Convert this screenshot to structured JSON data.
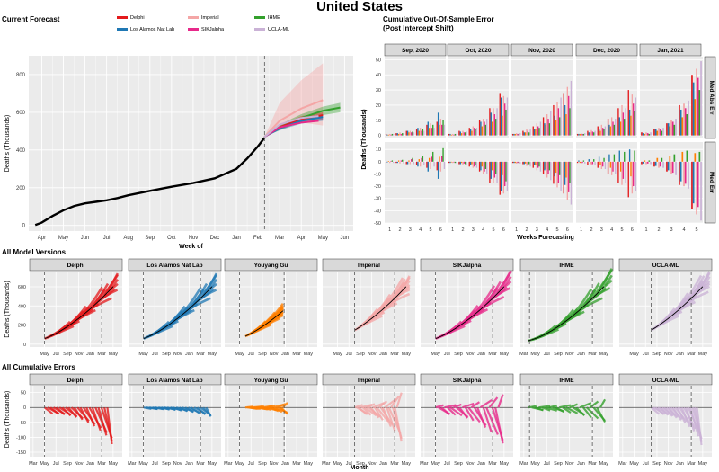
{
  "title": "United States",
  "colors": {
    "panel_bg": "#ebebeb",
    "grid": "#ffffff",
    "strip_bg": "#d9d9d9",
    "black": "#000000"
  },
  "models": [
    {
      "name": "Delphi",
      "color": "#e41a1c"
    },
    {
      "name": "Los Alamos Nat Lab",
      "color": "#1f78b4"
    },
    {
      "name": "Youyang Gu",
      "color": "#ff7f00"
    },
    {
      "name": "Imperial",
      "color": "#f4a6a6"
    },
    {
      "name": "SIKJalpha",
      "color": "#e7298a"
    },
    {
      "name": "IHME",
      "color": "#33a02c"
    },
    {
      "name": "UCLA-ML",
      "color": "#cab2d6"
    }
  ],
  "chart_data": [
    {
      "id": "current_forecast",
      "type": "line",
      "title": "Current Forecast",
      "xlabel": "Week of",
      "ylabel": "Deaths (Thousands)",
      "x_ticks": [
        "Apr",
        "May",
        "Jun",
        "Jul",
        "Aug",
        "Sep",
        "Oct",
        "Nov",
        "Dec",
        "Jan",
        "Feb",
        "Mar",
        "Apr",
        "May",
        "Jun"
      ],
      "ylim": [
        -30,
        900
      ],
      "y_ticks": [
        0,
        200,
        400,
        600,
        800
      ],
      "legend_names": [
        "Delphi",
        "Imperial",
        "IHME",
        "Los Alamos Nat Lab",
        "SIKJalpha",
        "UCLA-ML"
      ],
      "vline_x": 10.3,
      "observed": {
        "x": [
          -0.3,
          0,
          0.5,
          1,
          1.5,
          2,
          2.5,
          3,
          3.5,
          4,
          5,
          6,
          7,
          8,
          9,
          9.5,
          10,
          10.3
        ],
        "y": [
          2,
          15,
          50,
          80,
          103,
          117,
          125,
          133,
          145,
          160,
          183,
          205,
          225,
          250,
          300,
          355,
          420,
          465
        ]
      },
      "forecasts": [
        {
          "name": "Imperial",
          "x": [
            10.3,
            11,
            12,
            13
          ],
          "y": [
            470,
            555,
            620,
            665
          ],
          "lower": [
            470,
            520,
            545,
            530
          ],
          "upper": [
            470,
            650,
            770,
            860
          ]
        },
        {
          "name": "IHME",
          "x": [
            10.3,
            11,
            12,
            13,
            13.8
          ],
          "y": [
            470,
            520,
            570,
            608,
            625
          ],
          "lower": [
            470,
            505,
            548,
            585,
            600
          ],
          "upper": [
            470,
            535,
            590,
            630,
            650
          ]
        },
        {
          "name": "Delphi",
          "x": [
            10.3,
            11,
            12,
            13
          ],
          "y": [
            470,
            520,
            565,
            585
          ],
          "lower": [
            470,
            510,
            545,
            560
          ],
          "upper": [
            470,
            530,
            580,
            600
          ]
        },
        {
          "name": "Los Alamos Nat Lab",
          "x": [
            10.3,
            11,
            12,
            13
          ],
          "y": [
            470,
            515,
            555,
            575
          ],
          "lower": [
            470,
            505,
            540,
            555
          ],
          "upper": [
            470,
            525,
            570,
            590
          ]
        },
        {
          "name": "SIKJalpha",
          "x": [
            10.3,
            11,
            12,
            12.8
          ],
          "y": [
            470,
            520,
            545,
            555
          ]
        },
        {
          "name": "UCLA-ML",
          "x": [
            10.3,
            11,
            12,
            12.8
          ],
          "y": [
            470,
            535,
            570,
            580
          ]
        }
      ]
    },
    {
      "id": "cumulative_error",
      "type": "bar",
      "title": "Cumulative Out-Of-Sample Error",
      "subtitle": "(Post Intercept Shift)",
      "xlabel": "Weeks Forecasting",
      "ylabel": "Deaths (Thousands)",
      "columns": [
        "Sep, 2020",
        "Oct, 2020",
        "Nov, 2020",
        "Dec, 2020",
        "Jan, 2021"
      ],
      "rows": [
        "Med Abs Err",
        "Med Err"
      ],
      "row_ylims": [
        [
          -2,
          52
        ],
        [
          -50,
          16
        ]
      ],
      "row_yticks": [
        [
          0,
          10,
          20,
          30,
          40,
          50
        ],
        [
          -50,
          -40,
          -30,
          -20,
          -10,
          0,
          10
        ]
      ],
      "weeks": [
        1,
        2,
        3,
        4,
        5,
        6
      ],
      "series_order": [
        "Delphi",
        "Los Alamos Nat Lab",
        "Youyang Gu",
        "Imperial",
        "SIKJalpha",
        "IHME",
        "UCLA-ML"
      ],
      "abs_err": [
        {
          "Delphi": [
            1,
            1.5,
            3,
            4,
            7,
            9
          ],
          "Los Alamos Nat Lab": [
            0.5,
            1.5,
            3,
            5,
            9,
            15
          ],
          "Youyang Gu": [
            0.5,
            1,
            2,
            3,
            5,
            7
          ],
          "Imperial": [
            1,
            2,
            3,
            5,
            8,
            11
          ],
          "SIKJalpha": [
            0.5,
            1,
            2,
            3,
            5,
            7
          ],
          "IHME": [
            1,
            1.5,
            2.5,
            4,
            7,
            10
          ],
          "UCLA-ML": [
            1,
            1.5,
            2,
            3,
            5,
            7
          ]
        },
        {
          "Delphi": [
            1,
            3,
            5,
            10,
            18,
            28
          ],
          "Los Alamos Nat Lab": [
            1,
            2.5,
            4,
            9,
            15,
            25
          ],
          "Youyang Gu": [
            0.5,
            1.5,
            3,
            6,
            9,
            13
          ],
          "Imperial": [
            1,
            3,
            6,
            11,
            18,
            26
          ],
          "SIKJalpha": [
            0.5,
            2,
            5,
            9,
            14,
            21
          ],
          "IHME": [
            1,
            2,
            4,
            7,
            11,
            17
          ],
          "UCLA-ML": [
            1,
            2.5,
            5,
            11,
            18,
            25
          ]
        },
        {
          "Delphi": [
            1,
            3,
            6,
            12,
            20,
            28
          ],
          "Los Alamos Nat Lab": [
            1,
            2,
            4,
            8,
            13,
            20
          ],
          "Youyang Gu": [
            1,
            2,
            4,
            7,
            10,
            14
          ],
          "Imperial": [
            1.5,
            4,
            8,
            14,
            22,
            32
          ],
          "SIKJalpha": [
            1,
            3,
            6,
            11,
            18,
            26
          ],
          "IHME": [
            1,
            2,
            5,
            8,
            12,
            18
          ],
          "UCLA-ML": [
            1.5,
            4,
            9,
            16,
            25,
            36
          ]
        },
        {
          "Delphi": [
            1,
            3,
            6,
            11,
            18,
            30
          ],
          "Los Alamos Nat Lab": [
            1,
            2,
            4,
            7,
            12,
            17
          ],
          "Youyang Gu": [
            1,
            2,
            3,
            6,
            9,
            13
          ],
          "Imperial": [
            1.5,
            3.5,
            7,
            12,
            20,
            27
          ],
          "SIKJalpha": [
            1,
            2.5,
            5,
            9,
            15,
            21
          ],
          "IHME": [
            1,
            2,
            4,
            7,
            11,
            16
          ],
          "UCLA-ML": [
            1.5,
            3,
            6,
            11,
            18,
            25
          ]
        },
        {
          "Delphi": [
            2,
            4,
            8,
            20,
            40
          ],
          "Los Alamos Nat Lab": [
            1.5,
            4,
            8,
            17,
            35
          ],
          "Youyang Gu": [
            1,
            3,
            6,
            12,
            24
          ],
          "Imperial": [
            2,
            5,
            10,
            21,
            44
          ],
          "SIKJalpha": [
            1.5,
            4,
            9,
            18,
            38
          ],
          "IHME": [
            1,
            3,
            7,
            14,
            30
          ],
          "UCLA-ML": [
            2,
            5,
            11,
            23,
            49
          ]
        }
      ],
      "med_err": [
        {
          "Delphi": [
            -0.5,
            -1,
            -2,
            -3,
            -5,
            -7
          ],
          "Los Alamos Nat Lab": [
            -0.5,
            -1,
            -2,
            -4,
            -8,
            -14
          ],
          "Youyang Gu": [
            0.5,
            1,
            1,
            2,
            3,
            4
          ],
          "Imperial": [
            -1,
            -1.5,
            -2,
            -4,
            -6,
            -8
          ],
          "SIKJalpha": [
            0.5,
            1,
            2,
            3,
            4,
            5
          ],
          "IHME": [
            1,
            1.5,
            3,
            5,
            8,
            11
          ],
          "UCLA-ML": [
            -1,
            -1.5,
            -2,
            -3,
            -4,
            -6
          ]
        },
        {
          "Delphi": [
            -1,
            -2,
            -4,
            -8,
            -17,
            -27
          ],
          "Los Alamos Nat Lab": [
            -1,
            -2,
            -3,
            -7,
            -14,
            -24
          ],
          "Youyang Gu": [
            -0.5,
            -1,
            -2,
            -4,
            -7,
            -11
          ],
          "Imperial": [
            -1,
            -2.5,
            -5,
            -10,
            -17,
            -26
          ],
          "SIKJalpha": [
            -0.5,
            -1.5,
            -4,
            -8,
            -13,
            -20
          ],
          "IHME": [
            -1,
            -2,
            -3,
            -6,
            -10,
            -16
          ],
          "UCLA-ML": [
            -1,
            -2.5,
            -5,
            -10,
            -17,
            -24
          ]
        },
        {
          "Delphi": [
            -1,
            -2,
            -5,
            -10,
            -18,
            -26
          ],
          "Los Alamos Nat Lab": [
            -1,
            -2,
            -3,
            -7,
            -12,
            -19
          ],
          "Youyang Gu": [
            -1,
            -1.5,
            -3,
            -6,
            -9,
            -13
          ],
          "Imperial": [
            -1.5,
            -3.5,
            -7,
            -13,
            -21,
            -31
          ],
          "SIKJalpha": [
            -1,
            -2.5,
            -5,
            -10,
            -17,
            -25
          ],
          "IHME": [
            -1,
            -2,
            -4,
            -7,
            -11,
            -17
          ],
          "UCLA-ML": [
            -1.5,
            -4,
            -8,
            -15,
            -24,
            -35
          ]
        },
        {
          "Delphi": [
            -1,
            -2.5,
            -5,
            -10,
            -17,
            -29
          ],
          "Los Alamos Nat Lab": [
            1,
            2,
            4,
            6,
            9,
            10
          ],
          "Youyang Gu": [
            -1,
            -1.5,
            -3,
            -5,
            -8,
            -12
          ],
          "Imperial": [
            -1.5,
            -3,
            -6,
            -11,
            -19,
            -26
          ],
          "SIKJalpha": [
            -1,
            -2,
            -4,
            -8,
            -14,
            -20
          ],
          "IHME": [
            1,
            2,
            3,
            6,
            8,
            9
          ],
          "UCLA-ML": [
            -1.5,
            -3,
            -6,
            -10,
            -17,
            -24
          ]
        },
        {
          "Delphi": [
            -2,
            -4,
            -8,
            -19,
            -39
          ],
          "Los Alamos Nat Lab": [
            -1.5,
            -3.5,
            -7,
            -16,
            -34
          ],
          "Youyang Gu": [
            1,
            3,
            5,
            8,
            7
          ],
          "Imperial": [
            -2,
            -5,
            -10,
            -20,
            -43
          ],
          "SIKJalpha": [
            -1.5,
            -4,
            -9,
            -18,
            -37
          ],
          "IHME": [
            1,
            3,
            6,
            9,
            8
          ],
          "UCLA-ML": [
            -2,
            -5,
            -11,
            -22,
            -48
          ]
        }
      ]
    },
    {
      "id": "all_model_versions",
      "type": "line",
      "title": "All Model Versions",
      "ylabel": "Deaths (Thousands)",
      "x_ticks": [
        "Mar",
        "May",
        "Jul",
        "Sep",
        "Nov",
        "Jan",
        "Mar",
        "May"
      ],
      "ylim": [
        -30,
        760
      ],
      "y_ticks": [
        0,
        200,
        400,
        600
      ],
      "panels": [
        {
          "name": "Delphi",
          "ticks_from": 1,
          "vlines": [
            1,
            6
          ],
          "start": 1,
          "end": 7.4
        },
        {
          "name": "Los Alamos Nat Lab",
          "ticks_from": 1,
          "vlines": [
            1,
            6
          ],
          "start": 1,
          "end": 7.4
        },
        {
          "name": "Youyang Gu",
          "ticks_from": 1,
          "vlines": [
            1,
            4.9
          ],
          "start": 1.5,
          "end": 4.8
        },
        {
          "name": "Imperial",
          "ticks_from": 1,
          "vlines": [
            2.5,
            6
          ],
          "start": 2.5,
          "end": 7.3
        },
        {
          "name": "SIKJalpha",
          "ticks_from": 1,
          "vlines": [
            1,
            6
          ],
          "start": 1,
          "end": 7.6
        },
        {
          "name": "IHME",
          "ticks_from": 0,
          "vlines": [
            0.5,
            6
          ],
          "start": 0.4,
          "end": 7.7
        },
        {
          "name": "UCLA-ML",
          "ticks_from": 1,
          "vlines": [
            2.5,
            6
          ],
          "start": 2.5,
          "end": 7.6
        }
      ]
    },
    {
      "id": "all_cumulative_errors",
      "type": "scatter",
      "title": "All Cumulative Errors",
      "xlabel": "Month",
      "ylabel": "Deaths (Thousands)",
      "x_ticks": [
        "Mar",
        "May",
        "Jul",
        "Sep",
        "Nov",
        "Jan",
        "Mar",
        "May"
      ],
      "ylim": [
        -165,
        85
      ],
      "y_ticks": [
        -150,
        -100,
        -50,
        0,
        50
      ],
      "panels": [
        {
          "name": "Delphi",
          "vlines": [
            1,
            6
          ],
          "start": 1,
          "end": 6.9,
          "min_err": -140,
          "max_err": 12
        },
        {
          "name": "Los Alamos Nat Lab",
          "vlines": [
            1,
            6
          ],
          "start": 1,
          "end": 6.9,
          "min_err": -35,
          "max_err": 15
        },
        {
          "name": "Youyang Gu",
          "vlines": [
            1,
            4.9
          ],
          "start": 1.5,
          "end": 5.2,
          "min_err": -30,
          "max_err": 20
        },
        {
          "name": "Imperial",
          "vlines": [
            2.5,
            6
          ],
          "start": 2.5,
          "end": 6.6,
          "min_err": -150,
          "max_err": 60
        },
        {
          "name": "SIKJalpha",
          "vlines": [
            1,
            6
          ],
          "start": 1,
          "end": 6.9,
          "min_err": -150,
          "max_err": 50
        },
        {
          "name": "IHME",
          "vlines": [
            0.5,
            6
          ],
          "start": 0.4,
          "end": 7.1,
          "min_err": -60,
          "max_err": 30
        },
        {
          "name": "UCLA-ML",
          "vlines": [
            2.5,
            6
          ],
          "start": 2.5,
          "end": 6.9,
          "min_err": -150,
          "max_err": 10
        }
      ]
    }
  ]
}
